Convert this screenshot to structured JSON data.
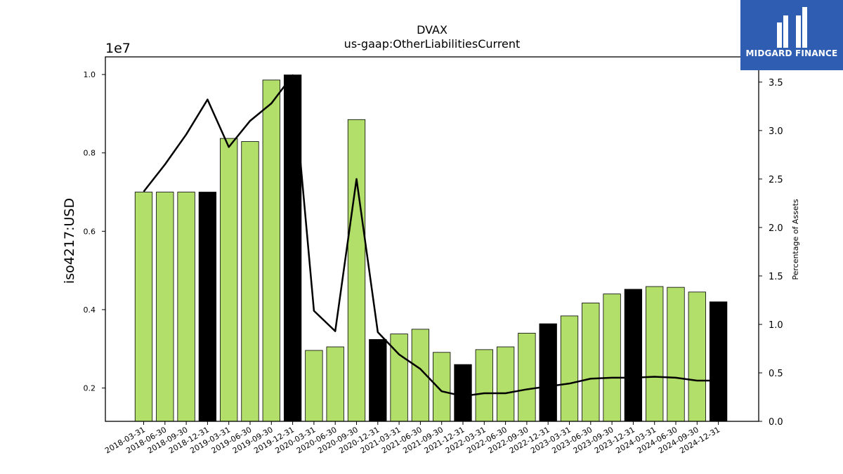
{
  "brand": {
    "name": "MIDGARD FINANCE",
    "logo_color": "#2f5db1"
  },
  "colors": {
    "bar": "#b2de6a",
    "bar_highlight": "#000000",
    "line": "#000000"
  },
  "chart_data": {
    "type": "bar",
    "title": "DVAX",
    "subtitle": "us-gaap:OtherLiabilitiesCurrent",
    "ylabel": "iso4217:USD",
    "y_multiplier_label": "1e7",
    "y2label": "Percentage of Assets",
    "ylim": [
      0.115,
      1.045
    ],
    "y_ticks": [
      "0.2",
      "0.4",
      "0.6",
      "0.8",
      "1.0"
    ],
    "y2lim": [
      0,
      3.76
    ],
    "y2_ticks": [
      "0.0",
      "0.5",
      "1.0",
      "1.5",
      "2.0",
      "2.5",
      "3.0",
      "3.5"
    ],
    "grid": false,
    "categories": [
      "2018-03-31",
      "2018-06-30",
      "2018-09-30",
      "2018-12-31",
      "2019-03-31",
      "2019-06-30",
      "2019-09-30",
      "2019-12-31",
      "2020-03-31",
      "2020-06-30",
      "2020-09-30",
      "2020-12-31",
      "2021-03-31",
      "2021-06-30",
      "2021-09-30",
      "2021-12-31",
      "2022-03-31",
      "2022-06-30",
      "2022-09-30",
      "2022-12-31",
      "2023-03-31",
      "2023-06-30",
      "2023-09-30",
      "2023-12-31",
      "2024-03-31",
      "2024-06-30",
      "2024-09-30",
      "2024-12-31"
    ],
    "series": [
      {
        "type": "bar",
        "axis": "left",
        "values": [
          0.7,
          0.7,
          0.7,
          0.7,
          0.837,
          0.829,
          0.986,
          0.999,
          0.296,
          0.305,
          0.885,
          0.324,
          0.338,
          0.35,
          0.291,
          0.26,
          0.298,
          0.305,
          0.34,
          0.364,
          0.384,
          0.417,
          0.44,
          0.452,
          0.459,
          0.457,
          0.445,
          0.42
        ],
        "highlight": [
          false,
          false,
          false,
          true,
          false,
          false,
          false,
          true,
          false,
          false,
          false,
          true,
          false,
          false,
          false,
          true,
          false,
          false,
          false,
          true,
          false,
          false,
          false,
          true,
          false,
          false,
          false,
          true
        ]
      },
      {
        "type": "line",
        "axis": "right",
        "values": [
          2.37,
          2.65,
          2.96,
          3.32,
          2.83,
          3.1,
          3.28,
          3.57,
          1.14,
          0.93,
          2.5,
          0.92,
          0.69,
          0.54,
          0.31,
          0.26,
          0.29,
          0.29,
          0.33,
          0.36,
          0.39,
          0.44,
          0.45,
          0.45,
          0.46,
          0.45,
          0.42,
          0.42
        ]
      }
    ]
  }
}
